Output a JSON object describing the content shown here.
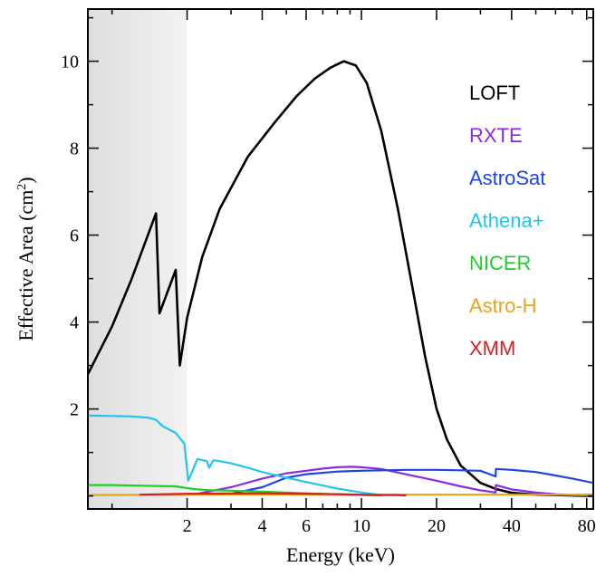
{
  "chart_data": {
    "type": "line",
    "title": "",
    "xlabel": "Energy (keV)",
    "ylabel": "Effective Area (cm",
    "ylabel_sup": "2",
    "ylabel_tail": ")",
    "xscale": "log",
    "xlim": [
      0.8,
      85
    ],
    "ylim": [
      -0.3,
      11.2
    ],
    "x_ticks": [
      2,
      4,
      6,
      10,
      20,
      40,
      80
    ],
    "x_tick_labels": [
      "2",
      "4",
      "6",
      "10",
      "20",
      "40",
      "80"
    ],
    "y_ticks": [
      2,
      4,
      6,
      8,
      10
    ],
    "y_tick_labels": [
      "2",
      "4",
      "6",
      "8",
      "10"
    ],
    "shaded_region": {
      "x": [
        0.8,
        2.0
      ]
    },
    "grid": false,
    "legend_position": "right",
    "series": [
      {
        "name": "LOFT",
        "color": "#000000",
        "x": [
          0.8,
          1.0,
          1.2,
          1.5,
          1.55,
          1.8,
          1.87,
          2.0,
          2.3,
          2.7,
          3.5,
          4.5,
          5.5,
          6.5,
          7.5,
          8.5,
          9.5,
          10.5,
          12,
          14,
          16,
          18,
          20,
          22,
          25,
          30,
          35,
          40,
          50,
          60,
          70,
          85
        ],
        "values": [
          2.8,
          3.9,
          5.0,
          6.5,
          4.2,
          5.2,
          3.0,
          4.1,
          5.5,
          6.6,
          7.8,
          8.6,
          9.2,
          9.6,
          9.85,
          10.0,
          9.9,
          9.5,
          8.4,
          6.6,
          4.8,
          3.2,
          2.0,
          1.3,
          0.7,
          0.3,
          0.15,
          0.07,
          0.03,
          0.02,
          0.01,
          0.0
        ],
        "markers": false
      },
      {
        "name": "RXTE",
        "color": "#8a2be2",
        "x": [
          2.2,
          3,
          4,
          5,
          6,
          7,
          8,
          9,
          10,
          12,
          15,
          20,
          25,
          30,
          34.5,
          34.6,
          40,
          50,
          60,
          70,
          85
        ],
        "values": [
          0.05,
          0.2,
          0.4,
          0.52,
          0.58,
          0.63,
          0.66,
          0.67,
          0.66,
          0.62,
          0.5,
          0.35,
          0.22,
          0.13,
          0.08,
          0.25,
          0.15,
          0.08,
          0.04,
          0.02,
          0.01
        ],
        "markers": false
      },
      {
        "name": "AstroSat",
        "color": "#1f44e6",
        "x": [
          3,
          4,
          5,
          6,
          8,
          10,
          15,
          20,
          25,
          30,
          34.5,
          34.6,
          40,
          50,
          60,
          70,
          85
        ],
        "values": [
          0.05,
          0.2,
          0.42,
          0.5,
          0.56,
          0.58,
          0.6,
          0.6,
          0.59,
          0.58,
          0.45,
          0.62,
          0.6,
          0.55,
          0.47,
          0.4,
          0.3
        ],
        "markers": false
      },
      {
        "name": "Athena+",
        "color": "#21c4ef",
        "x": [
          0.8,
          1.0,
          1.2,
          1.4,
          1.5,
          1.6,
          1.8,
          1.95,
          2.02,
          2.2,
          2.4,
          2.45,
          2.55,
          2.7,
          3.0,
          3.5,
          4,
          5,
          6,
          7,
          8,
          10,
          12
        ],
        "values": [
          1.85,
          1.84,
          1.83,
          1.8,
          1.75,
          1.6,
          1.45,
          1.2,
          0.35,
          0.85,
          0.8,
          0.65,
          0.82,
          0.8,
          0.75,
          0.65,
          0.55,
          0.42,
          0.32,
          0.24,
          0.17,
          0.08,
          0.02
        ],
        "markers": false
      },
      {
        "name": "NICER",
        "color": "#1ecf2b",
        "x": [
          0.8,
          1.0,
          1.5,
          1.8,
          1.9,
          2.0,
          2.2,
          2.5,
          3,
          4,
          5,
          6,
          8,
          10,
          12
        ],
        "values": [
          0.25,
          0.25,
          0.23,
          0.22,
          0.2,
          0.18,
          0.15,
          0.13,
          0.12,
          0.1,
          0.08,
          0.06,
          0.04,
          0.02,
          0.01
        ],
        "markers": false
      },
      {
        "name": "Astro-H",
        "color": "#e8a31b",
        "x": [
          0.8,
          2,
          5,
          10,
          20,
          40,
          85
        ],
        "values": [
          0.02,
          0.03,
          0.03,
          0.03,
          0.03,
          0.03,
          0.03
        ],
        "markers": false
      },
      {
        "name": "XMM",
        "color": "#d81e1e",
        "x": [
          1.3,
          2,
          4,
          6,
          8,
          10,
          12,
          14,
          15
        ],
        "values": [
          0.03,
          0.05,
          0.06,
          0.05,
          0.04,
          0.03,
          0.02,
          0.02,
          0.01
        ],
        "markers": false
      }
    ]
  }
}
